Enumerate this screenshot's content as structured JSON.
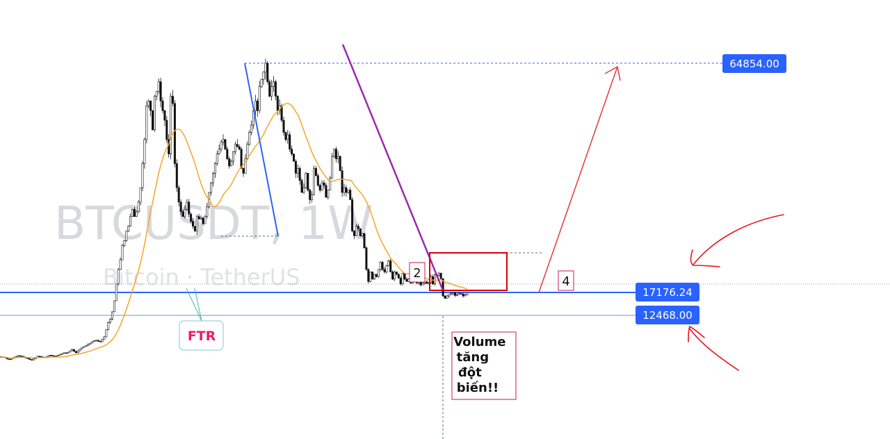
{
  "chart_data": {
    "type": "candlestick",
    "symbol": "BTCUSDT, 1W",
    "subtitle": "Bitcoin · TetherUS",
    "price_levels": [
      {
        "label": "64854.00",
        "value": 64854.0,
        "line": "dashed"
      },
      {
        "label": "17176.24",
        "value": 17176.24,
        "line": "solid"
      },
      {
        "label": "12468.00",
        "value": 12468.0,
        "line": "solid"
      }
    ],
    "annotations": [
      {
        "text": "FTR"
      },
      {
        "text": "2"
      },
      {
        "text": "4"
      },
      {
        "text": "Volume\ntăng\nđột\nbiến!!"
      }
    ],
    "candles_close": [
      3900,
      3800,
      3650,
      3400,
      3300,
      3500,
      3700,
      3900,
      4100,
      4050,
      3950,
      3800,
      3600,
      3500,
      3300,
      3200,
      3450,
      3750,
      4000,
      3900,
      3800,
      3700,
      3800,
      4000,
      4200,
      4100,
      3950,
      4050,
      4200,
      4350,
      4500,
      4700,
      4600,
      4800,
      5100,
      5400,
      5000,
      4700,
      5100,
      5500,
      5800,
      6000,
      6200,
      6500,
      6700,
      7000,
      7200,
      7300,
      7100,
      7000,
      7500,
      8000,
      9500,
      11000,
      11700,
      13200,
      15500,
      19000,
      22000,
      24000,
      27000,
      28000,
      30000,
      31000,
      33000,
      34500,
      33000,
      34000,
      36000,
      39000,
      44000,
      49000,
      56000,
      57000,
      55000,
      51000,
      58000,
      59000,
      61000,
      57000,
      55000,
      53000,
      49000,
      46000,
      58000,
      56500,
      44000,
      39000,
      36000,
      34000,
      33000,
      34500,
      36000,
      33500,
      32000,
      31000,
      30000,
      33000,
      32500,
      32700,
      31500,
      33000,
      35000,
      38000,
      40000,
      42000,
      44000,
      46000,
      47000,
      48500,
      49000,
      47000,
      45000,
      43500,
      44500,
      46500,
      48000,
      47500,
      47000,
      43000,
      42000,
      45000,
      48000,
      50500,
      52000,
      55000,
      57000,
      55000,
      60000,
      61500,
      63000,
      64854,
      61000,
      58000,
      60000,
      61000,
      58000,
      55000,
      56000,
      53000,
      50500,
      49000,
      50000,
      47000,
      46000,
      44500,
      42000,
      43000,
      40500,
      38000,
      39000,
      42000,
      38500,
      36500,
      37500,
      43000,
      41500,
      39500,
      38500,
      40000,
      39500,
      37000,
      38500,
      41000,
      45500,
      47000,
      45000,
      45500,
      42500,
      38000,
      39000,
      38000,
      38500,
      36500,
      30000,
      29000,
      31000,
      30500,
      29000,
      29500,
      26500,
      22000,
      19500,
      21500,
      20000,
      21000,
      20500,
      22000,
      23500,
      22000,
      21500,
      22800,
      23800,
      21500,
      20000,
      21500,
      21000,
      20200,
      19000,
      21200,
      20000,
      19500,
      20000,
      19200,
      19600,
      20800,
      19200,
      19500,
      18800,
      19200,
      19400,
      19100,
      19300,
      20500,
      19000,
      20900,
      20800,
      21200,
      20100,
      16500,
      16000,
      16500,
      16800,
      17000,
      17200,
      16600,
      16800,
      17000,
      16900,
      16500,
      16700,
      17176
    ]
  }
}
